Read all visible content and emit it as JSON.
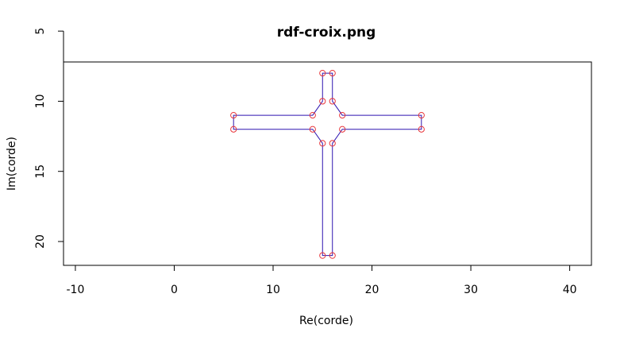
{
  "chart_data": {
    "type": "line",
    "title": "rdf-croix.png",
    "xlabel": "Re(corde)",
    "ylabel": "Im(corde)",
    "xlim": [
      -11.2,
      42.2
    ],
    "ylim": [
      7.2,
      21.7
    ],
    "y_reversed": true,
    "x_ticks": [
      -10,
      0,
      10,
      20,
      30,
      40
    ],
    "y_ticks": [
      5,
      10,
      15,
      20
    ],
    "x_tick_labels": [
      "-10",
      "0",
      "10",
      "20",
      "30",
      "40"
    ],
    "y_tick_labels": [
      "5",
      "10",
      "15",
      "20"
    ],
    "grid": false,
    "line_color": "#2e15b0",
    "point_color": "#e8353a",
    "closed": true,
    "points": [
      [
        15,
        8
      ],
      [
        16,
        8
      ],
      [
        16,
        10
      ],
      [
        17,
        11
      ],
      [
        25,
        11
      ],
      [
        25,
        12
      ],
      [
        17,
        12
      ],
      [
        16,
        13
      ],
      [
        16,
        21
      ],
      [
        15,
        21
      ],
      [
        15,
        13
      ],
      [
        14,
        12
      ],
      [
        6,
        12
      ],
      [
        6,
        11
      ],
      [
        14,
        11
      ],
      [
        15,
        10
      ]
    ]
  }
}
